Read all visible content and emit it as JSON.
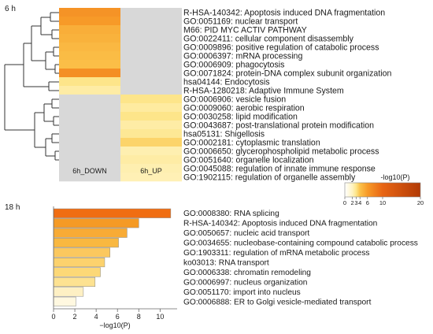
{
  "chart_data": [
    {
      "type": "heatmap",
      "panel_label": "6 h",
      "columns": [
        "6h_DOWN",
        "6h_UP"
      ],
      "rows": [
        "R-HSA-140342: Apoptosis induced DNA fragmentation",
        "GO:0051169: nuclear transport",
        "M66: PID MYC ACTIV PATHWAY",
        "GO:0022411: cellular component disassembly",
        "GO:0009896: positive regulation of catabolic process",
        "GO:0006397: mRNA processing",
        "GO:0006909: phagocytosis",
        "GO:0071824: protein-DNA complex subunit organization",
        "hsa04144: Endocytosis",
        "R-HSA-1280218: Adaptive Immune System",
        "GO:0006906: vesicle fusion",
        "GO:0009060: aerobic respiration",
        "GO:0030258: lipid modification",
        "GO:0043687: post-translational protein modification",
        "hsa05131: Shigellosis",
        "GO:0002181: cytoplasmic translation",
        "GO:0006650: glycerophospholipid metabolic process",
        "GO:0051640: organelle localization",
        "GO:0045088: regulation of innate immune response",
        "GO:1902115: regulation of organelle assembly"
      ],
      "values": [
        [
          6.5,
          null
        ],
        [
          6.0,
          null
        ],
        [
          5.0,
          null
        ],
        [
          4.8,
          null
        ],
        [
          4.5,
          null
        ],
        [
          4.3,
          null
        ],
        [
          4.2,
          null
        ],
        [
          6.8,
          null
        ],
        [
          3.0,
          null
        ],
        [
          2.5,
          null
        ],
        [
          null,
          3.0
        ],
        [
          null,
          2.6
        ],
        [
          null,
          3.0
        ],
        [
          null,
          2.5
        ],
        [
          null,
          2.8
        ],
        [
          null,
          3.5
        ],
        [
          null,
          2.3
        ],
        [
          null,
          2.5
        ],
        [
          null,
          2.3
        ],
        [
          null,
          2.2
        ]
      ],
      "missing_color": "#d8d8d8",
      "colorbar": {
        "label": "-log10(P)",
        "ticks": [
          "0",
          "2",
          "3",
          "4",
          "6",
          "10",
          "20"
        ],
        "tick_values": [
          0,
          2,
          3,
          4,
          6,
          10,
          20
        ],
        "colors": [
          "#ffffff",
          "#fff3c0",
          "#fde58a",
          "#fbc24a",
          "#f79a28",
          "#e86514",
          "#b23a06"
        ]
      }
    },
    {
      "type": "bar",
      "orientation": "horizontal",
      "panel_label": "18 h",
      "categories": [
        "GO:0008380: RNA splicing",
        "R-HSA-140342: Apoptosis induced DNA fragmentation",
        "GO:0050657: nucleic acid transport",
        "GO:0034655: nucleobase-containing compound catabolic process",
        "GO:1903311: regulation of mRNA metabolic process",
        "ko03013: RNA transport",
        "GO:0006338: chromatin remodeling",
        "GO:0006997: nucleus organization",
        "GO:0051170: import into nucleus",
        "GO:0006888: ER to Golgi vesicle-mediated transport"
      ],
      "values": [
        11.0,
        8.0,
        6.9,
        6.1,
        5.3,
        4.8,
        4.4,
        3.9,
        2.8,
        2.1
      ],
      "xlabel": "−log10(P)",
      "xticks": [
        "0",
        "2",
        "4",
        "6",
        "8",
        "10"
      ],
      "xlim": [
        0,
        11.6
      ],
      "colors": [
        "#f06d12",
        "#f59a25",
        "#f8ab35",
        "#f9b840",
        "#fbc85e",
        "#fcd26d",
        "#fcd877",
        "#fde291",
        "#fef0c4",
        "#fff8e0"
      ]
    }
  ]
}
